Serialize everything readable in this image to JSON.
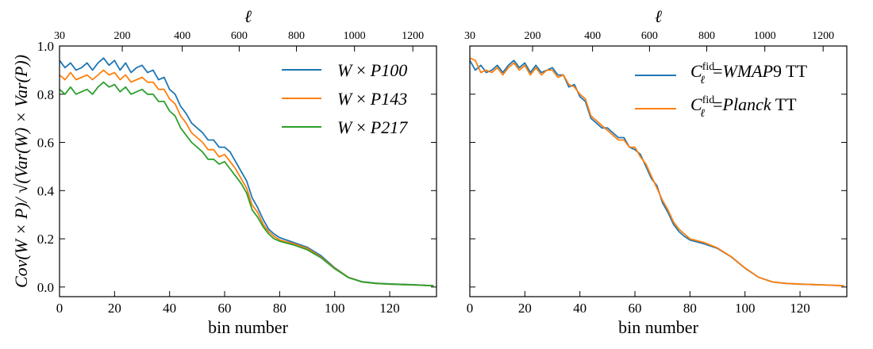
{
  "chart_data": [
    {
      "type": "line",
      "panel": "left",
      "xlabel": "bin number",
      "ylabel": "Cov(W × P)/ √(Var(W) × Var(P))",
      "top_axis_label": "ℓ",
      "xlim": [
        0,
        137
      ],
      "ylim": [
        -0.04,
        1.0
      ],
      "xticks": [
        0,
        20,
        40,
        60,
        80,
        100,
        120
      ],
      "yticks": [
        0.0,
        0.2,
        0.4,
        0.6,
        0.8,
        1.0
      ],
      "top_ticks": [
        {
          "bin": 0,
          "label": "30"
        },
        {
          "bin": 22.8,
          "label": "200"
        },
        {
          "bin": 44.6,
          "label": "400"
        },
        {
          "bin": 65.3,
          "label": "600"
        },
        {
          "bin": 86.1,
          "label": "800"
        },
        {
          "bin": 107.2,
          "label": "1000"
        },
        {
          "bin": 128.4,
          "label": "1200"
        }
      ],
      "legend_position": "top-right",
      "series": [
        {
          "name": "P100",
          "legend_prefix": "W",
          "legend_op": "×",
          "color": "#1f77b4",
          "x": [
            0,
            2,
            4,
            6,
            8,
            10,
            12,
            14,
            16,
            18,
            20,
            22,
            24,
            26,
            28,
            30,
            32,
            34,
            36,
            38,
            40,
            42,
            44,
            46,
            48,
            50,
            52,
            54,
            56,
            58,
            60,
            62,
            64,
            66,
            68,
            70,
            72,
            74,
            76,
            78,
            80,
            85,
            90,
            95,
            100,
            105,
            110,
            115,
            120,
            125,
            130,
            136
          ],
          "y": [
            0.94,
            0.91,
            0.93,
            0.9,
            0.91,
            0.93,
            0.9,
            0.93,
            0.95,
            0.92,
            0.94,
            0.9,
            0.93,
            0.89,
            0.91,
            0.92,
            0.89,
            0.9,
            0.86,
            0.87,
            0.82,
            0.8,
            0.75,
            0.72,
            0.68,
            0.66,
            0.64,
            0.61,
            0.61,
            0.58,
            0.58,
            0.56,
            0.52,
            0.48,
            0.44,
            0.37,
            0.33,
            0.28,
            0.24,
            0.22,
            0.205,
            0.185,
            0.165,
            0.13,
            0.08,
            0.04,
            0.022,
            0.016,
            0.013,
            0.011,
            0.009,
            0.005
          ]
        },
        {
          "name": "P143",
          "legend_prefix": "W",
          "legend_op": "×",
          "color": "#ff7f0e",
          "x": [
            0,
            2,
            4,
            6,
            8,
            10,
            12,
            14,
            16,
            18,
            20,
            22,
            24,
            26,
            28,
            30,
            32,
            34,
            36,
            38,
            40,
            42,
            44,
            46,
            48,
            50,
            52,
            54,
            56,
            58,
            60,
            62,
            64,
            66,
            68,
            70,
            72,
            74,
            76,
            78,
            80,
            85,
            90,
            95,
            100,
            105,
            110,
            115,
            120,
            125,
            130,
            136
          ],
          "y": [
            0.88,
            0.86,
            0.89,
            0.86,
            0.87,
            0.88,
            0.86,
            0.88,
            0.9,
            0.88,
            0.89,
            0.86,
            0.88,
            0.85,
            0.86,
            0.87,
            0.85,
            0.85,
            0.82,
            0.82,
            0.78,
            0.76,
            0.71,
            0.68,
            0.64,
            0.62,
            0.6,
            0.57,
            0.57,
            0.54,
            0.55,
            0.52,
            0.49,
            0.45,
            0.41,
            0.34,
            0.31,
            0.26,
            0.23,
            0.21,
            0.195,
            0.18,
            0.16,
            0.125,
            0.078,
            0.04,
            0.021,
            0.015,
            0.012,
            0.01,
            0.008,
            0.005
          ]
        },
        {
          "name": "P217",
          "legend_prefix": "W",
          "legend_op": "×",
          "color": "#2ca02c",
          "x": [
            0,
            2,
            4,
            6,
            8,
            10,
            12,
            14,
            16,
            18,
            20,
            22,
            24,
            26,
            28,
            30,
            32,
            34,
            36,
            38,
            40,
            42,
            44,
            46,
            48,
            50,
            52,
            54,
            56,
            58,
            60,
            62,
            64,
            66,
            68,
            70,
            72,
            74,
            76,
            78,
            80,
            85,
            90,
            95,
            100,
            105,
            110,
            115,
            120,
            125,
            130,
            136
          ],
          "y": [
            0.82,
            0.8,
            0.83,
            0.8,
            0.81,
            0.82,
            0.8,
            0.83,
            0.85,
            0.83,
            0.84,
            0.81,
            0.83,
            0.8,
            0.81,
            0.82,
            0.8,
            0.8,
            0.77,
            0.77,
            0.73,
            0.71,
            0.66,
            0.63,
            0.6,
            0.58,
            0.56,
            0.53,
            0.53,
            0.51,
            0.52,
            0.49,
            0.46,
            0.43,
            0.39,
            0.32,
            0.29,
            0.25,
            0.22,
            0.2,
            0.19,
            0.175,
            0.155,
            0.122,
            0.076,
            0.039,
            0.021,
            0.015,
            0.012,
            0.01,
            0.008,
            0.005
          ]
        }
      ]
    },
    {
      "type": "line",
      "panel": "right",
      "xlabel": "bin number",
      "top_axis_label": "ℓ",
      "xlim": [
        0,
        137
      ],
      "ylim": [
        -0.04,
        1.0
      ],
      "xticks": [
        0,
        20,
        40,
        60,
        80,
        100,
        120
      ],
      "yticks": [
        0.0,
        0.2,
        0.4,
        0.6,
        0.8,
        1.0
      ],
      "top_ticks": [
        {
          "bin": 0,
          "label": "30"
        },
        {
          "bin": 22.8,
          "label": "200"
        },
        {
          "bin": 44.6,
          "label": "400"
        },
        {
          "bin": 65.3,
          "label": "600"
        },
        {
          "bin": 86.1,
          "label": "800"
        },
        {
          "bin": 107.2,
          "label": "1000"
        },
        {
          "bin": 128.4,
          "label": "1200"
        }
      ],
      "legend_position": "top-right",
      "series": [
        {
          "name": "WMAP9 TT",
          "legend_symbol": "C",
          "legend_sup": "fid",
          "legend_sub": "ℓ",
          "legend_text": "=",
          "legend_italic": "WMAP",
          "legend_rest": "9 TT",
          "color": "#1f77b4",
          "x": [
            0,
            2,
            4,
            6,
            8,
            10,
            12,
            14,
            16,
            18,
            20,
            22,
            24,
            26,
            28,
            30,
            32,
            34,
            36,
            38,
            40,
            42,
            44,
            46,
            48,
            50,
            52,
            54,
            56,
            58,
            60,
            62,
            64,
            66,
            68,
            70,
            72,
            74,
            76,
            78,
            80,
            85,
            90,
            95,
            100,
            105,
            110,
            115,
            120,
            125,
            130,
            136
          ],
          "y": [
            0.94,
            0.9,
            0.92,
            0.89,
            0.9,
            0.92,
            0.89,
            0.92,
            0.94,
            0.91,
            0.93,
            0.89,
            0.92,
            0.89,
            0.9,
            0.91,
            0.88,
            0.88,
            0.83,
            0.84,
            0.79,
            0.77,
            0.7,
            0.68,
            0.66,
            0.66,
            0.64,
            0.62,
            0.62,
            0.58,
            0.57,
            0.55,
            0.5,
            0.45,
            0.42,
            0.35,
            0.31,
            0.26,
            0.23,
            0.21,
            0.195,
            0.18,
            0.16,
            0.125,
            0.078,
            0.04,
            0.021,
            0.015,
            0.012,
            0.01,
            0.008,
            0.005
          ]
        },
        {
          "name": "Planck TT",
          "legend_symbol": "C",
          "legend_sup": "fid",
          "legend_sub": "ℓ",
          "legend_text": "=",
          "legend_italic": "Planck",
          "legend_rest": " TT",
          "color": "#ff7f0e",
          "x": [
            0,
            2,
            4,
            6,
            8,
            10,
            12,
            14,
            16,
            18,
            20,
            22,
            24,
            26,
            28,
            30,
            32,
            34,
            36,
            38,
            40,
            42,
            44,
            46,
            48,
            50,
            52,
            54,
            56,
            58,
            60,
            62,
            64,
            66,
            68,
            70,
            72,
            74,
            76,
            78,
            80,
            85,
            90,
            95,
            100,
            105,
            110,
            115,
            120,
            125,
            130,
            136
          ],
          "y": [
            0.95,
            0.94,
            0.89,
            0.9,
            0.89,
            0.91,
            0.88,
            0.91,
            0.93,
            0.9,
            0.92,
            0.88,
            0.91,
            0.88,
            0.9,
            0.9,
            0.87,
            0.88,
            0.84,
            0.83,
            0.8,
            0.78,
            0.71,
            0.69,
            0.67,
            0.65,
            0.63,
            0.61,
            0.61,
            0.58,
            0.58,
            0.54,
            0.51,
            0.46,
            0.41,
            0.36,
            0.32,
            0.27,
            0.24,
            0.22,
            0.2,
            0.185,
            0.162,
            0.126,
            0.079,
            0.04,
            0.021,
            0.015,
            0.012,
            0.01,
            0.008,
            0.005
          ]
        }
      ]
    }
  ]
}
